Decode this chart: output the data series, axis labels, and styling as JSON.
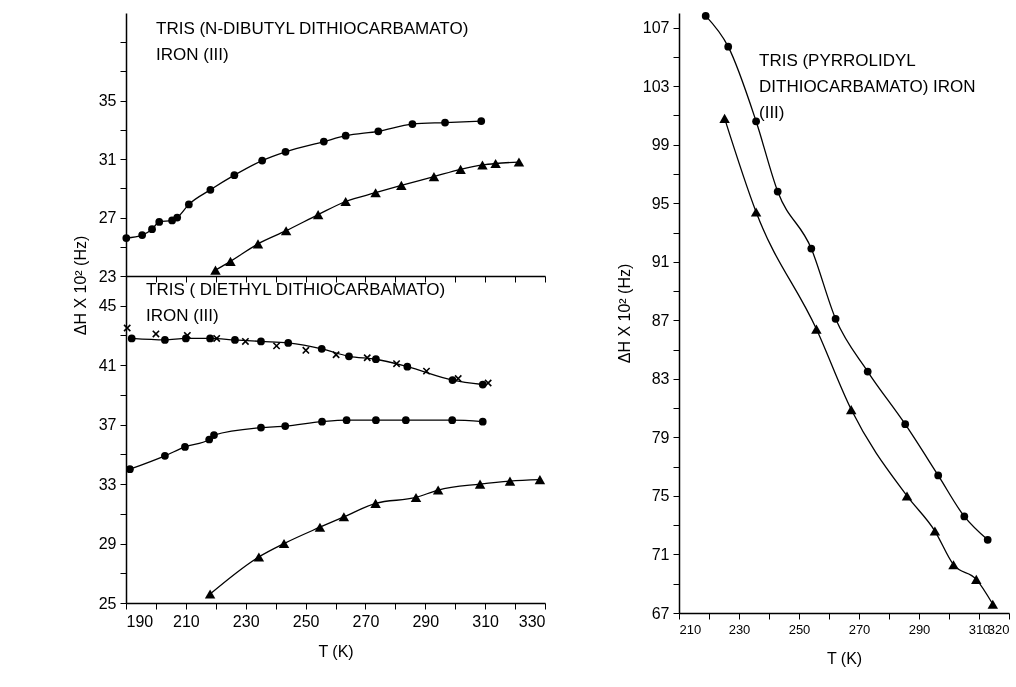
{
  "chart_data": [
    {
      "type": "line",
      "annotations": [
        "TRIS (N-DIBUTYL DITHIOCARBAMATO)\nIRON (III)"
      ],
      "xlim": [
        190,
        330
      ],
      "ylim": [
        23,
        41
      ],
      "tick_labels": "y",
      "xticks": [
        {
          "value": 190,
          "label": null
        },
        {
          "value": 200,
          "label": null
        },
        {
          "value": 210,
          "label": null
        },
        {
          "value": 220,
          "label": null
        },
        {
          "value": 230,
          "label": null
        },
        {
          "value": 240,
          "label": null
        },
        {
          "value": 250,
          "label": null
        },
        {
          "value": 260,
          "label": null
        },
        {
          "value": 270,
          "label": null
        },
        {
          "value": 280,
          "label": null
        },
        {
          "value": 290,
          "label": null
        },
        {
          "value": 300,
          "label": null
        },
        {
          "value": 310,
          "label": null
        },
        {
          "value": 320,
          "label": null
        },
        {
          "value": 330,
          "label": null
        }
      ],
      "yticks": [
        23,
        {
          "value": 25,
          "label": null
        },
        27,
        {
          "value": 29,
          "label": null
        },
        31,
        {
          "value": 33,
          "label": null
        },
        35,
        {
          "value": 37,
          "label": null
        },
        {
          "value": 39,
          "label": null
        }
      ],
      "series": [
        {
          "type": "line",
          "marker": "circle",
          "color": "#000000",
          "x": [
            190.1,
            195.4,
            198.7,
            201.1,
            205.4,
            207.1,
            211.0,
            218.2,
            226.2,
            235.5,
            243.3,
            256.1,
            263.4,
            274.3,
            285.7,
            296.6,
            308.7
          ],
          "values": [
            25.6,
            25.8,
            26.2,
            26.7,
            26.8,
            27.0,
            27.9,
            28.9,
            29.9,
            30.9,
            31.5,
            32.2,
            32.6,
            32.9,
            33.4,
            33.5,
            33.6
          ]
        },
        {
          "type": "line",
          "marker": "triangle",
          "color": "#000000",
          "x": [
            219.9,
            224.9,
            234.1,
            243.5,
            254.2,
            263.4,
            273.4,
            282.0,
            292.9,
            301.8,
            309.1,
            313.5,
            321.3
          ],
          "values": [
            23.4,
            24.0,
            25.2,
            26.1,
            27.2,
            28.1,
            28.7,
            29.2,
            29.8,
            30.3,
            30.6,
            30.7,
            30.8
          ]
        }
      ]
    },
    {
      "type": "line",
      "annotations": [
        "TRIS ( DIETHYL DITHIOCARBAMATO)\nIRON (III)"
      ],
      "xlabel": "T (K)",
      "ylabel": "ΔH X 10² (Hz)",
      "xlim": [
        190,
        330
      ],
      "ylim": [
        25,
        47
      ],
      "xticks": [
        190,
        {
          "value": 200,
          "label": null
        },
        210,
        {
          "value": 220,
          "label": null
        },
        230,
        {
          "value": 240,
          "label": null
        },
        250,
        {
          "value": 260,
          "label": null
        },
        270,
        {
          "value": 280,
          "label": null
        },
        290,
        {
          "value": 300,
          "label": null
        },
        310,
        {
          "value": 320,
          "label": null
        },
        330
      ],
      "yticks": [
        25,
        {
          "value": 27,
          "label": null
        },
        29,
        {
          "value": 31,
          "label": null
        },
        33,
        {
          "value": 35,
          "label": null
        },
        37,
        {
          "value": 39,
          "label": null
        },
        41,
        {
          "value": 43,
          "label": null
        },
        45
      ],
      "series": [
        {
          "type": "line",
          "marker": "circle",
          "color": "#000000",
          "x": [
            191.9,
            203.0,
            210.0,
            218.1,
            226.4,
            235.1,
            244.2,
            255.4,
            264.5,
            273.5,
            284.0,
            299.1,
            309.2
          ],
          "values": [
            42.8,
            42.7,
            42.8,
            42.8,
            42.7,
            42.6,
            42.5,
            42.1,
            41.6,
            41.4,
            40.9,
            40.0,
            39.7
          ]
        },
        {
          "type": "scatter",
          "marker": "cross",
          "color": "#000000",
          "x": [
            190.4,
            200.0,
            210.5,
            220.3,
            229.9,
            240.3,
            250.1,
            260.2,
            270.6,
            280.4,
            290.4,
            301.0,
            311.0
          ],
          "values": [
            43.5,
            43.1,
            43.0,
            42.8,
            42.6,
            42.3,
            42.0,
            41.7,
            41.5,
            41.1,
            40.6,
            40.1,
            39.8
          ]
        },
        {
          "type": "line",
          "marker": "circle",
          "color": "#000000",
          "x": [
            191.3,
            203.0,
            209.7,
            217.8,
            219.4,
            235.1,
            243.2,
            255.5,
            263.7,
            273.5,
            283.5,
            299.0,
            309.2
          ],
          "values": [
            34.0,
            34.9,
            35.5,
            36.0,
            36.3,
            36.8,
            36.9,
            37.2,
            37.3,
            37.3,
            37.3,
            37.3,
            37.2
          ]
        },
        {
          "type": "line",
          "marker": "triangle",
          "color": "#000000",
          "x": [
            218.1,
            234.4,
            242.8,
            254.8,
            262.8,
            273.4,
            286.9,
            294.3,
            308.3,
            318.3,
            328.3
          ],
          "values": [
            25.6,
            28.1,
            29.0,
            30.1,
            30.8,
            31.7,
            32.1,
            32.6,
            33.0,
            33.2,
            33.3
          ]
        }
      ]
    },
    {
      "type": "line",
      "annotations": [
        "TRIS (PYRROLIDYL\nDITHIOCARBAMATO) IRON\n(III)"
      ],
      "xlabel": "T (K)",
      "ylabel": "ΔH X 10² (Hz)",
      "xlim": [
        210,
        320
      ],
      "ylim": [
        67,
        108
      ],
      "xticks": [
        210,
        {
          "value": 220,
          "label": null
        },
        230,
        {
          "value": 240,
          "label": null
        },
        250,
        {
          "value": 260,
          "label": null
        },
        270,
        {
          "value": 280,
          "label": null
        },
        290,
        {
          "value": 300,
          "label": null
        },
        310,
        320
      ],
      "yticks": [
        67,
        {
          "value": 69,
          "label": null
        },
        71,
        {
          "value": 73,
          "label": null
        },
        75,
        {
          "value": 77,
          "label": null
        },
        79,
        {
          "value": 81,
          "label": null
        },
        83,
        {
          "value": 85,
          "label": null
        },
        87,
        {
          "value": 89,
          "label": null
        },
        91,
        {
          "value": 93,
          "label": null
        },
        95,
        {
          "value": 97,
          "label": null
        },
        99,
        {
          "value": 101,
          "label": null
        },
        103,
        {
          "value": 105,
          "label": null
        },
        107
      ],
      "series": [
        {
          "type": "line",
          "marker": "circle",
          "color": "#000000",
          "x": [
            218.9,
            226.4,
            235.7,
            242.9,
            254.1,
            262.2,
            272.9,
            285.4,
            296.4,
            305.1,
            312.9
          ],
          "values": [
            107.8,
            105.7,
            100.6,
            95.8,
            91.9,
            87.1,
            83.5,
            79.9,
            76.4,
            73.6,
            72.0
          ]
        },
        {
          "type": "line",
          "marker": "triangle",
          "color": "#000000",
          "x": [
            225.2,
            235.7,
            255.8,
            267.4,
            286.0,
            295.3,
            301.5,
            309.1,
            314.6
          ],
          "values": [
            100.8,
            94.4,
            86.4,
            80.9,
            75.0,
            72.6,
            70.3,
            69.3,
            67.6
          ]
        }
      ]
    }
  ]
}
